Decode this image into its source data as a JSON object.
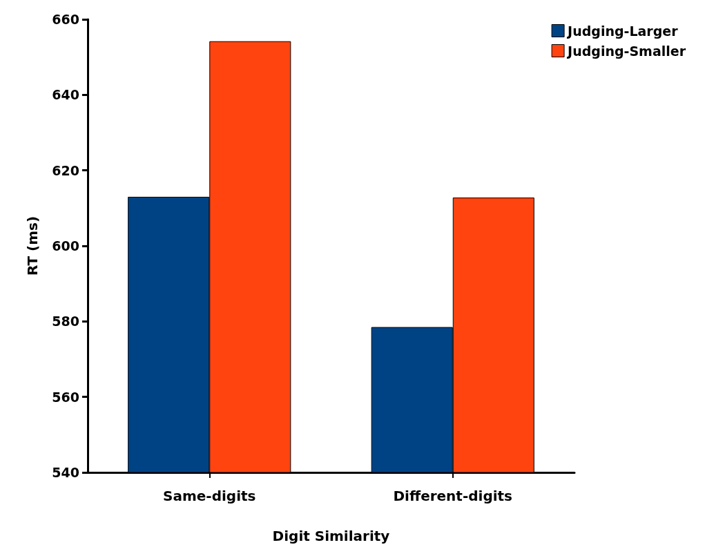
{
  "chart_data": {
    "type": "bar",
    "xlabel": "Digit Similarity",
    "ylabel": "RT (ms)",
    "categories": [
      "Same-digits",
      "Different-digits"
    ],
    "series": [
      {
        "name": "Judging-Larger",
        "color": "#004385",
        "values": [
          613,
          578.5
        ]
      },
      {
        "name": "Judging-Smaller",
        "color": "#ff4410",
        "values": [
          654.2,
          612.8
        ]
      }
    ],
    "ylim": [
      540,
      660
    ],
    "yticks": [
      540,
      560,
      580,
      600,
      620,
      640,
      660
    ],
    "grid": false,
    "legend": "top right"
  }
}
